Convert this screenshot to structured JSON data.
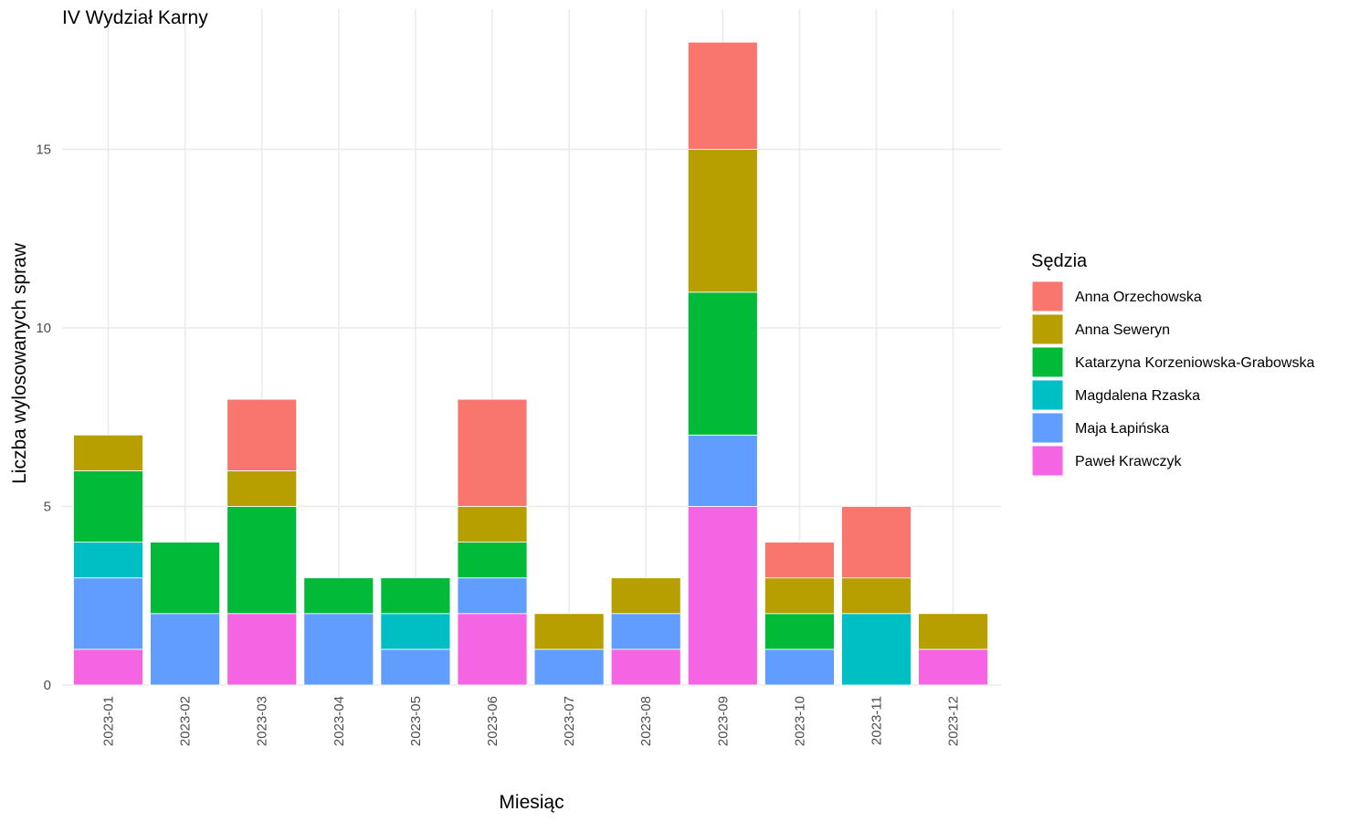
{
  "chart_data": {
    "type": "bar",
    "stacked": true,
    "title": "IV Wydział Karny",
    "xlabel": "Miesiąc",
    "ylabel": "Liczba wylosowanych spraw",
    "ylim": [
      0,
      18.5
    ],
    "yticks": [
      0,
      5,
      10,
      15
    ],
    "grid": true,
    "legend_title": "Sędzia",
    "legend_position": "right",
    "categories": [
      "2023-01",
      "2023-02",
      "2023-03",
      "2023-04",
      "2023-05",
      "2023-06",
      "2023-07",
      "2023-08",
      "2023-09",
      "2023-10",
      "2023-11",
      "2023-12"
    ],
    "series": [
      {
        "name": "Paweł Krawczyk",
        "color": "#F564E3",
        "values": [
          1,
          0,
          2,
          0,
          0,
          2,
          0,
          1,
          5,
          0,
          0,
          1
        ]
      },
      {
        "name": "Maja Łapińska",
        "color": "#619CFF",
        "values": [
          2,
          2,
          0,
          2,
          1,
          1,
          1,
          1,
          2,
          1,
          0,
          0
        ]
      },
      {
        "name": "Magdalena Rzaska",
        "color": "#00BFC4",
        "values": [
          1,
          0,
          0,
          0,
          1,
          0,
          0,
          0,
          0,
          0,
          2,
          0
        ]
      },
      {
        "name": "Katarzyna Korzeniowska-Grabowska",
        "color": "#00BA38",
        "values": [
          2,
          2,
          3,
          1,
          1,
          1,
          0,
          0,
          4,
          1,
          0,
          0
        ]
      },
      {
        "name": "Anna Seweryn",
        "color": "#B79F00",
        "values": [
          1,
          0,
          1,
          0,
          0,
          1,
          1,
          1,
          4,
          1,
          1,
          1
        ]
      },
      {
        "name": "Anna Orzechowska",
        "color": "#F8766D",
        "values": [
          0,
          0,
          2,
          0,
          0,
          3,
          0,
          0,
          3,
          1,
          2,
          0
        ]
      }
    ],
    "legend_order": [
      "Anna Orzechowska",
      "Anna Seweryn",
      "Katarzyna Korzeniowska-Grabowska",
      "Magdalena Rzaska",
      "Maja Łapińska",
      "Paweł Krawczyk"
    ]
  }
}
